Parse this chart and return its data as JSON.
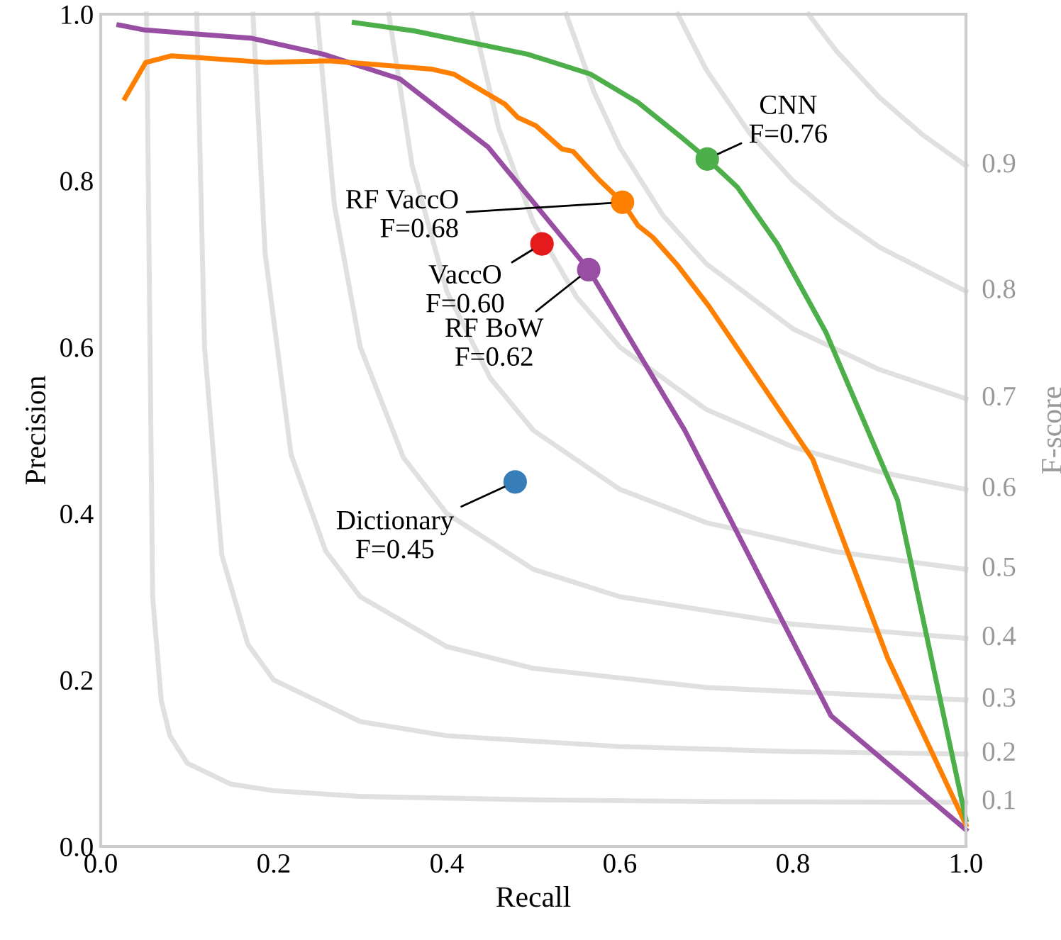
{
  "chart_data": {
    "type": "line",
    "xlabel": "Recall",
    "ylabel": "Precision",
    "y2label": "F-score",
    "xlim": [
      0,
      1
    ],
    "ylim": [
      0,
      1
    ],
    "xticks": [
      {
        "value": 0,
        "label": "0.0"
      },
      0.2,
      0.4,
      0.6,
      0.8,
      {
        "value": 1,
        "label": "1.0"
      }
    ],
    "yticks": [
      {
        "value": 0,
        "label": "0.0"
      },
      0.2,
      0.4,
      0.6,
      0.8,
      {
        "value": 1,
        "label": "1.0"
      }
    ],
    "grid": false,
    "legend": false,
    "series": [
      {
        "name": "0.1",
        "color": "#e0e0e0",
        "x": [
          0.053,
          0.06,
          0.07,
          0.08,
          0.1,
          0.15,
          0.2,
          0.3,
          0.5,
          0.7,
          1.0
        ],
        "values": [
          1.0,
          0.3,
          0.175,
          0.133,
          0.1,
          0.075,
          0.067,
          0.06,
          0.056,
          0.054,
          0.053
        ]
      },
      {
        "name": "0.2",
        "color": "#e0e0e0",
        "x": [
          0.111,
          0.12,
          0.14,
          0.17,
          0.2,
          0.3,
          0.4,
          0.6,
          0.8,
          1.0
        ],
        "values": [
          1.0,
          0.6,
          0.35,
          0.243,
          0.2,
          0.15,
          0.133,
          0.12,
          0.114,
          0.111
        ]
      },
      {
        "name": "0.3",
        "color": "#e0e0e0",
        "x": [
          0.176,
          0.19,
          0.22,
          0.26,
          0.3,
          0.4,
          0.5,
          0.7,
          1.0
        ],
        "values": [
          1.0,
          0.713,
          0.471,
          0.355,
          0.3,
          0.24,
          0.214,
          0.191,
          0.176
        ]
      },
      {
        "name": "0.4",
        "color": "#e0e0e0",
        "x": [
          0.25,
          0.27,
          0.3,
          0.35,
          0.4,
          0.5,
          0.6,
          0.8,
          1.0
        ],
        "values": [
          1.0,
          0.771,
          0.6,
          0.467,
          0.4,
          0.333,
          0.3,
          0.267,
          0.25
        ]
      },
      {
        "name": "0.5",
        "color": "#e0e0e0",
        "x": [
          0.333,
          0.36,
          0.4,
          0.45,
          0.5,
          0.6,
          0.7,
          0.85,
          1.0
        ],
        "values": [
          1.0,
          0.818,
          0.667,
          0.563,
          0.5,
          0.429,
          0.389,
          0.354,
          0.333
        ]
      },
      {
        "name": "0.6",
        "color": "#e0e0e0",
        "x": [
          0.429,
          0.46,
          0.5,
          0.55,
          0.6,
          0.7,
          0.8,
          0.9,
          1.0
        ],
        "values": [
          1.0,
          0.863,
          0.75,
          0.66,
          0.6,
          0.525,
          0.48,
          0.45,
          0.429
        ]
      },
      {
        "name": "0.7",
        "color": "#e0e0e0",
        "x": [
          0.538,
          0.57,
          0.6,
          0.65,
          0.7,
          0.8,
          0.9,
          1.0
        ],
        "values": [
          1.0,
          0.907,
          0.84,
          0.758,
          0.7,
          0.622,
          0.573,
          0.538
        ]
      },
      {
        "name": "0.8",
        "color": "#e0e0e0",
        "x": [
          0.667,
          0.7,
          0.75,
          0.8,
          0.85,
          0.9,
          1.0
        ],
        "values": [
          1.0,
          0.933,
          0.857,
          0.8,
          0.756,
          0.72,
          0.667
        ]
      },
      {
        "name": "0.9",
        "color": "#e0e0e0",
        "x": [
          0.818,
          0.85,
          0.9,
          0.95,
          1.0
        ],
        "values": [
          1.0,
          0.956,
          0.9,
          0.855,
          0.818
        ]
      },
      {
        "color": "#984ea3",
        "x": [
          0.021,
          0.051,
          0.175,
          0.257,
          0.346,
          0.448,
          0.564,
          0.675,
          0.844,
          1.0
        ],
        "values": [
          0.987,
          0.981,
          0.971,
          0.952,
          0.922,
          0.84,
          0.693,
          0.5,
          0.157,
          0.02
        ]
      },
      {
        "color": "#ff7f00",
        "x": [
          0.028,
          0.052,
          0.082,
          0.192,
          0.264,
          0.382,
          0.408,
          0.467,
          0.482,
          0.503,
          0.533,
          0.546,
          0.575,
          0.603,
          0.621,
          0.638,
          0.667,
          0.703,
          0.823,
          0.91,
          1.0
        ],
        "values": [
          0.899,
          0.942,
          0.95,
          0.942,
          0.944,
          0.934,
          0.928,
          0.892,
          0.876,
          0.866,
          0.838,
          0.835,
          0.802,
          0.774,
          0.746,
          0.732,
          0.698,
          0.649,
          0.465,
          0.225,
          0.026
        ]
      },
      {
        "color": "#4daf4a",
        "x": [
          0.293,
          0.362,
          0.493,
          0.566,
          0.621,
          0.67,
          0.701,
          0.736,
          0.782,
          0.838,
          0.921,
          1.0
        ],
        "values": [
          0.99,
          0.98,
          0.952,
          0.928,
          0.894,
          0.853,
          0.826,
          0.792,
          0.724,
          0.618,
          0.416,
          0.032
        ]
      },
      {
        "type": "scatter",
        "color": "#4daf4a",
        "x": [
          0.701
        ],
        "values": [
          0.826
        ]
      },
      {
        "type": "scatter",
        "color": "#ff7f00",
        "x": [
          0.603
        ],
        "values": [
          0.774
        ]
      },
      {
        "type": "scatter",
        "color": "#e41a1c",
        "x": [
          0.51
        ],
        "values": [
          0.724
        ]
      },
      {
        "type": "scatter",
        "color": "#984ea3",
        "x": [
          0.564
        ],
        "values": [
          0.693
        ]
      },
      {
        "type": "scatter",
        "color": "#377eb8",
        "x": [
          0.479
        ],
        "values": [
          0.438
        ]
      }
    ],
    "annotations": [
      {
        "text": "CNN\nF=0.76",
        "x": 0.701,
        "y": 0.826
      },
      {
        "text": "RF VaccO\nF=0.68",
        "x": 0.603,
        "y": 0.774
      },
      {
        "text": "VaccO\nF=0.60",
        "x": 0.51,
        "y": 0.724
      },
      {
        "text": "RF BoW\nF=0.62",
        "x": 0.564,
        "y": 0.693
      },
      {
        "text": "Dictionary\nF=0.45",
        "x": 0.479,
        "y": 0.438
      }
    ]
  }
}
